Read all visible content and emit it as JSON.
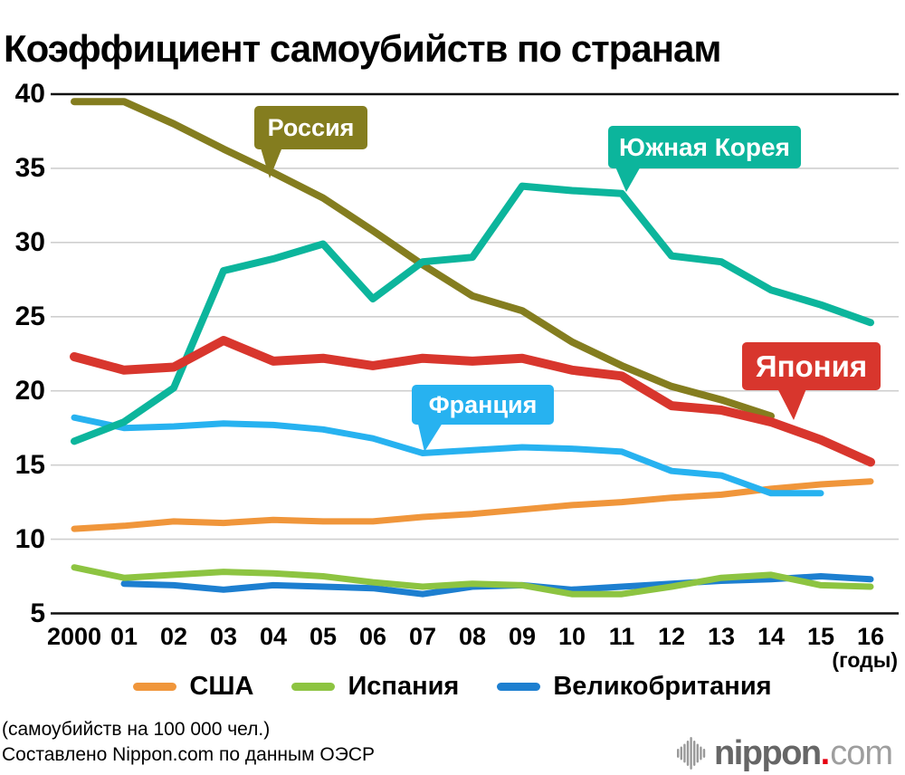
{
  "title": "Коэффициент самоубийств по странам",
  "footnote_line1": "(самоубийств на 100 000 чел.)",
  "footnote_line2": "Составлено Nippon.com по данным ОЭСР",
  "axis_unit_label": "(годы)",
  "logo": {
    "name": "nippon",
    "dot": ".",
    "tld": "com",
    "text_dark": "#666666",
    "text_light": "#9e9e9e",
    "dot_red": "#e60012"
  },
  "chart_data": {
    "type": "line",
    "title": "Коэффициент самоубийств по странам",
    "unit_note": "suicides per 100,000 people",
    "x_tick_labels": [
      "2000",
      "01",
      "02",
      "03",
      "04",
      "05",
      "06",
      "07",
      "08",
      "09",
      "10",
      "11",
      "12",
      "13",
      "14",
      "15",
      "16"
    ],
    "years": [
      2000,
      2001,
      2002,
      2003,
      2004,
      2005,
      2006,
      2007,
      2008,
      2009,
      2010,
      2011,
      2012,
      2013,
      2014,
      2015,
      2016
    ],
    "ylim": [
      5,
      40
    ],
    "yticks": [
      40,
      35,
      30,
      25,
      20,
      15,
      10,
      5
    ],
    "grid": "horizontal",
    "legend_position": "bottom",
    "legend_bottom": [
      "usa",
      "spain",
      "uk"
    ],
    "series": [
      {
        "id": "russia",
        "name": "Россия",
        "color": "#847D1F",
        "callout": true,
        "values": [
          39.5,
          39.5,
          38.0,
          36.3,
          34.7,
          33.0,
          30.8,
          28.5,
          26.4,
          25.4,
          23.3,
          21.7,
          20.3,
          19.4,
          18.3,
          null,
          null
        ]
      },
      {
        "id": "south-korea",
        "name": "Южная Корея",
        "color": "#0CB59C",
        "callout": true,
        "values": [
          16.6,
          17.9,
          20.2,
          28.1,
          28.9,
          29.9,
          26.2,
          28.7,
          29.0,
          33.8,
          33.5,
          33.3,
          29.1,
          28.7,
          26.8,
          25.8,
          24.6
        ]
      },
      {
        "id": "japan",
        "name": "Япония",
        "color": "#D8362D",
        "callout": true,
        "values": [
          22.3,
          21.4,
          21.6,
          23.4,
          22.0,
          22.2,
          21.7,
          22.2,
          22.0,
          22.2,
          21.4,
          21.0,
          19.0,
          18.7,
          17.9,
          16.7,
          15.2
        ]
      },
      {
        "id": "france",
        "name": "Франция",
        "color": "#27B2F0",
        "callout": true,
        "values": [
          18.2,
          17.5,
          17.6,
          17.8,
          17.7,
          17.4,
          16.8,
          15.8,
          16.0,
          16.2,
          16.1,
          15.9,
          14.6,
          14.3,
          13.1,
          13.1,
          null
        ]
      },
      {
        "id": "usa",
        "name": "США",
        "color": "#F0963B",
        "callout": false,
        "values": [
          10.7,
          10.9,
          11.2,
          11.1,
          11.3,
          11.2,
          11.2,
          11.5,
          11.7,
          12.0,
          12.3,
          12.5,
          12.8,
          13.0,
          13.4,
          13.7,
          13.9
        ]
      },
      {
        "id": "spain",
        "name": "Испания",
        "color": "#8DC441",
        "callout": false,
        "values": [
          8.1,
          7.4,
          7.6,
          7.8,
          7.7,
          7.5,
          7.1,
          6.8,
          7.0,
          6.9,
          6.3,
          6.3,
          6.8,
          7.4,
          7.6,
          6.9,
          6.8
        ]
      },
      {
        "id": "uk",
        "name": "Великобритания",
        "color": "#1D7FD0",
        "callout": false,
        "values": [
          null,
          7.0,
          6.9,
          6.6,
          6.9,
          6.8,
          6.7,
          6.3,
          6.8,
          6.9,
          6.6,
          6.8,
          7.0,
          7.2,
          7.3,
          7.5,
          7.3
        ]
      }
    ]
  }
}
